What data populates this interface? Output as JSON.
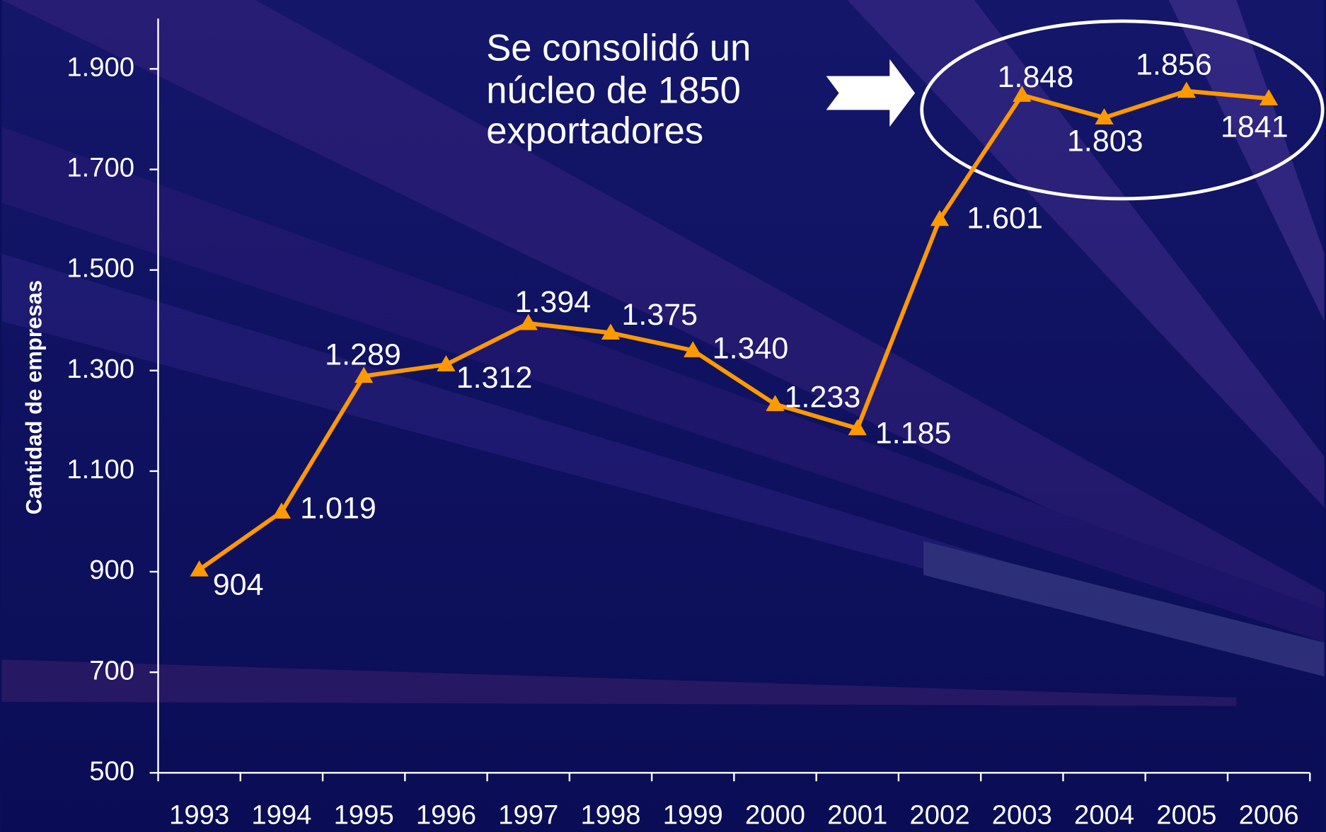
{
  "chart_data": {
    "type": "line",
    "y_label": "Cantidad de empresas",
    "annotation": [
      "Se consolidó un",
      "núcleo de 1850",
      "exportadores"
    ],
    "categories": [
      "1993",
      "1994",
      "1995",
      "1996",
      "1997",
      "1998",
      "1999",
      "2000",
      "2001",
      "2002",
      "2003",
      "2004",
      "2005",
      "2006"
    ],
    "series": [
      {
        "color": "#ff9900",
        "values": [
          904,
          1019,
          1289,
          1312,
          1394,
          1375,
          1340,
          1233,
          1185,
          1601,
          1848,
          1803,
          1856,
          1841
        ],
        "value_labels": [
          "904",
          "1.019",
          "1.289",
          "1.312",
          "1.394",
          "1.375",
          "1.340",
          "1.233",
          "1.185",
          "1.601",
          "1.848",
          "1.803",
          "1.856",
          "1841"
        ]
      }
    ],
    "ylim": [
      500,
      2000
    ],
    "yticks": [
      500,
      700,
      900,
      {
        "value": 1100,
        "label": "1.100"
      },
      {
        "value": 1300,
        "label": "1.300"
      },
      {
        "value": 1500,
        "label": "1.500"
      },
      {
        "value": 1700,
        "label": "1.700"
      },
      {
        "value": 1900,
        "label": "1.900"
      }
    ]
  }
}
